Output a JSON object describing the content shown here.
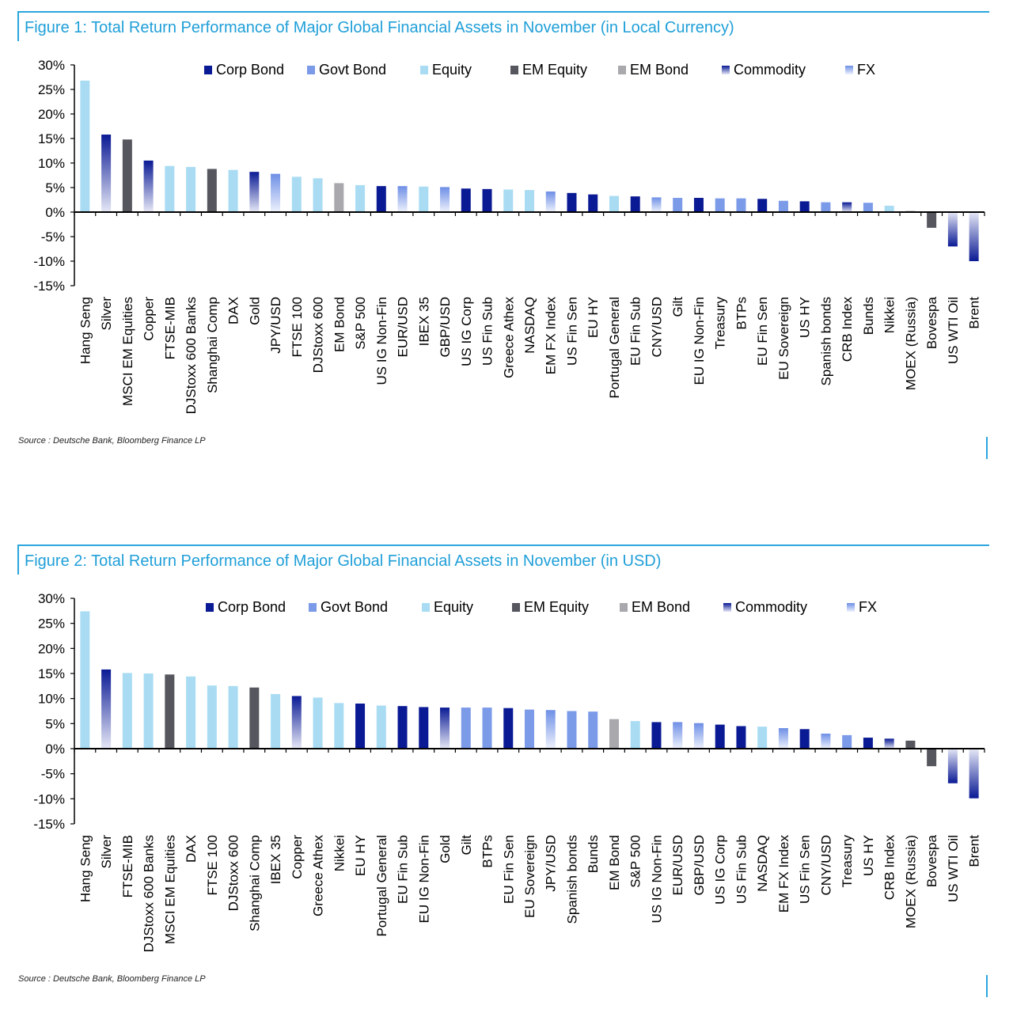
{
  "colors": {
    "corp_bond": "#0a1a94",
    "govt_bond": "#7b9ae8",
    "equity": "#a9dcf3",
    "em_equity": "#55565e",
    "em_bond": "#a8a8ad",
    "commodity_dark": "#0a1a94",
    "fx_dark": "#6e8fe6",
    "title": "#1f9fd8"
  },
  "legend_items": [
    {
      "key": "corp_bond",
      "label": "Corp Bond"
    },
    {
      "key": "govt_bond",
      "label": "Govt Bond"
    },
    {
      "key": "equity",
      "label": "Equity"
    },
    {
      "key": "em_equity",
      "label": "EM Equity"
    },
    {
      "key": "em_bond",
      "label": "EM Bond"
    },
    {
      "key": "commodity",
      "label": "Commodity"
    },
    {
      "key": "fx",
      "label": "FX"
    }
  ],
  "figures": [
    {
      "title": "Figure 1: Total Return Performance of Major Global Financial Assets in November (in Local Currency)",
      "source": "Source : Deutsche Bank, Bloomberg Finance LP"
    },
    {
      "title": "Figure 2: Total Return Performance of Major Global Financial Assets in November (in USD)",
      "source": "Source : Deutsche Bank, Bloomberg Finance LP"
    }
  ],
  "chart_data": [
    {
      "type": "bar",
      "title": "Figure 1: Total Return Performance of Major Global Financial Assets in November (in Local Currency)",
      "ylim": [
        -15,
        30
      ],
      "yticks": [
        "30%",
        "25%",
        "20%",
        "15%",
        "10%",
        "5%",
        "0%",
        "-5%",
        "-10%",
        "-15%"
      ],
      "ytick_values": [
        30,
        25,
        20,
        15,
        10,
        5,
        0,
        -5,
        -10,
        -15
      ],
      "legend_position": "top",
      "categories": [
        "Hang Seng",
        "Silver",
        "MSCI EM Equities",
        "Copper",
        "FTSE-MIB",
        "DJStoxx 600 Banks",
        "Shanghai Comp",
        "DAX",
        "Gold",
        "JPY/USD",
        "FTSE 100",
        "DJStoxx 600",
        "EM Bond",
        "S&P 500",
        "US IG Non-Fin",
        "EUR/USD",
        "IBEX 35",
        "GBP/USD",
        "US IG Corp",
        "US Fin Sub",
        "Greece Athex",
        "NASDAQ",
        "EM FX Index",
        "US Fin Sen",
        "EU HY",
        "Portugal General",
        "EU Fin Sub",
        "CNY/USD",
        "Gilt",
        "EU IG Non-Fin",
        "Treasury",
        "BTPs",
        "EU Fin Sen",
        "EU Sovereign",
        "US HY",
        "Spanish bonds",
        "CRB Index",
        "Bunds",
        "Nikkei",
        "MOEX (Russia)",
        "Bovespa",
        "US WTI Oil",
        "Brent"
      ],
      "classes": [
        "equity",
        "commodity",
        "em_equity",
        "commodity",
        "equity",
        "equity",
        "em_equity",
        "equity",
        "commodity",
        "fx",
        "equity",
        "equity",
        "em_bond",
        "equity",
        "corp_bond",
        "fx",
        "equity",
        "fx",
        "corp_bond",
        "corp_bond",
        "equity",
        "equity",
        "fx",
        "corp_bond",
        "corp_bond",
        "equity",
        "corp_bond",
        "fx",
        "govt_bond",
        "corp_bond",
        "govt_bond",
        "govt_bond",
        "corp_bond",
        "govt_bond",
        "corp_bond",
        "govt_bond",
        "commodity",
        "govt_bond",
        "equity",
        "em_equity",
        "em_equity",
        "commodity",
        "commodity"
      ],
      "values": [
        26.8,
        15.8,
        14.8,
        10.5,
        9.4,
        9.2,
        8.8,
        8.6,
        8.2,
        7.8,
        7.2,
        6.9,
        5.9,
        5.5,
        5.3,
        5.3,
        5.2,
        5.1,
        4.8,
        4.7,
        4.6,
        4.5,
        4.2,
        3.9,
        3.6,
        3.3,
        3.2,
        3.0,
        2.9,
        2.9,
        2.8,
        2.8,
        2.7,
        2.3,
        2.2,
        2.0,
        2.0,
        1.9,
        1.3,
        0.2,
        -3.2,
        -7.0,
        -10.0
      ]
    },
    {
      "type": "bar",
      "title": "Figure 2: Total Return Performance of Major Global Financial Assets in November (in USD)",
      "ylim": [
        -15,
        30
      ],
      "yticks": [
        "30%",
        "25%",
        "20%",
        "15%",
        "10%",
        "5%",
        "0%",
        "-5%",
        "-10%",
        "-15%"
      ],
      "ytick_values": [
        30,
        25,
        20,
        15,
        10,
        5,
        0,
        -5,
        -10,
        -15
      ],
      "legend_position": "top",
      "categories": [
        "Hang Seng",
        "Silver",
        "FTSE-MIB",
        "DJStoxx 600 Banks",
        "MSCI EM Equities",
        "DAX",
        "FTSE 100",
        "DJStoxx 600",
        "Shanghai Comp",
        "IBEX 35",
        "Copper",
        "Greece Athex",
        "Nikkei",
        "EU HY",
        "Portugal General",
        "EU Fin Sub",
        "EU IG Non-Fin",
        "Gold",
        "Gilt",
        "BTPs",
        "EU Fin Sen",
        "EU Sovereign",
        "JPY/USD",
        "Spanish bonds",
        "Bunds",
        "EM Bond",
        "S&P 500",
        "US IG Non-Fin",
        "EUR/USD",
        "GBP/USD",
        "US IG Corp",
        "US Fin Sub",
        "NASDAQ",
        "EM FX Index",
        "US Fin Sen",
        "CNY/USD",
        "Treasury",
        "US HY",
        "CRB Index",
        "MOEX (Russia)",
        "Bovespa",
        "US WTI Oil",
        "Brent"
      ],
      "classes": [
        "equity",
        "commodity",
        "equity",
        "equity",
        "em_equity",
        "equity",
        "equity",
        "equity",
        "em_equity",
        "equity",
        "commodity",
        "equity",
        "equity",
        "corp_bond",
        "equity",
        "corp_bond",
        "corp_bond",
        "commodity",
        "govt_bond",
        "govt_bond",
        "corp_bond",
        "govt_bond",
        "fx",
        "govt_bond",
        "govt_bond",
        "em_bond",
        "equity",
        "corp_bond",
        "fx",
        "fx",
        "corp_bond",
        "corp_bond",
        "equity",
        "fx",
        "corp_bond",
        "fx",
        "govt_bond",
        "corp_bond",
        "commodity",
        "em_equity",
        "em_equity",
        "commodity",
        "commodity"
      ],
      "values": [
        27.4,
        15.8,
        15.1,
        15.0,
        14.8,
        14.4,
        12.6,
        12.5,
        12.2,
        10.9,
        10.5,
        10.2,
        9.1,
        9.0,
        8.6,
        8.5,
        8.3,
        8.2,
        8.2,
        8.2,
        8.1,
        7.8,
        7.7,
        7.5,
        7.4,
        5.9,
        5.5,
        5.3,
        5.3,
        5.1,
        4.8,
        4.5,
        4.4,
        4.1,
        3.9,
        3.0,
        2.7,
        2.2,
        2.0,
        1.6,
        -3.5,
        -6.9,
        -9.9
      ]
    }
  ]
}
